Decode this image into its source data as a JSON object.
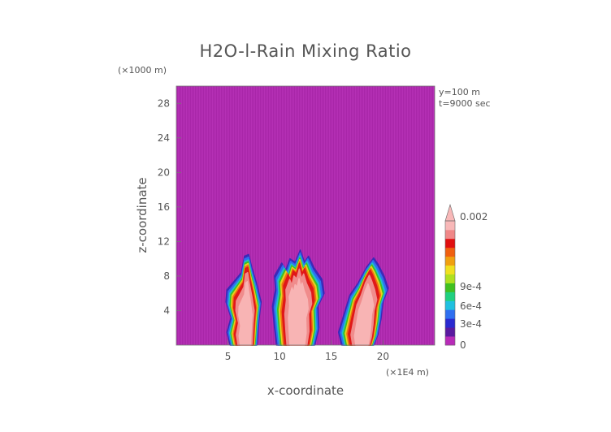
{
  "chart_data": {
    "type": "heatmap",
    "title": "H2O-l-Rain Mixing Ratio",
    "xlabel": "x-coordinate",
    "ylabel": "z-coordinate",
    "x_unit": "(×1E4 m)",
    "y_unit": "(×1000 m)",
    "xlim": [
      0,
      25
    ],
    "ylim": [
      0,
      30
    ],
    "x_ticks": [
      "5",
      "10",
      "15",
      "20"
    ],
    "x_tick_values": [
      5,
      10,
      15,
      20
    ],
    "y_ticks": [
      "4",
      "8",
      "12",
      "16",
      "20",
      "24",
      "28"
    ],
    "y_tick_values": [
      4,
      8,
      12,
      16,
      20,
      24,
      28
    ],
    "annotations": [
      "y=100 m",
      "t=9000 sec"
    ],
    "colorbar": {
      "labels": [
        "0",
        "3e-4",
        "6e-4",
        "9e-4",
        "0.002"
      ],
      "label_values": [
        0,
        0.0003,
        0.0006,
        0.0009,
        0.002
      ],
      "max": 0.002,
      "colors": [
        "#b82bb8",
        "#5a1aa0",
        "#2a2ad0",
        "#2f6ff0",
        "#20c0e0",
        "#20d080",
        "#40c020",
        "#b0e020",
        "#f0e020",
        "#f0a010",
        "#f06010",
        "#e01010",
        "#f08888",
        "#f8b8b8"
      ]
    },
    "background_value": 0,
    "cells": [
      {
        "name": "left cell",
        "x_range": [
          4.8,
          8.2
        ],
        "z_range": [
          0,
          10.5
        ],
        "peak": 0.002
      },
      {
        "name": "central cell",
        "x_range": [
          9.3,
          14.3
        ],
        "z_range": [
          0,
          11
        ],
        "peak": 0.002
      },
      {
        "name": "right cell",
        "x_range": [
          15.7,
          20.5
        ],
        "z_range": [
          0,
          10.1
        ],
        "peak": 0.002
      }
    ],
    "grid": false,
    "legend": "colorbar right"
  }
}
